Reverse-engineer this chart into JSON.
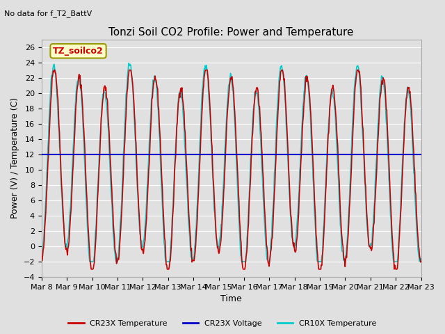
{
  "title": "Tonzi Soil CO2 Profile: Power and Temperature",
  "subtitle": "No data for f_T2_BattV",
  "ylabel": "Power (V) / Temperature (C)",
  "xlabel": "Time",
  "ylim": [
    -4,
    27
  ],
  "yticks": [
    -4,
    -2,
    0,
    2,
    4,
    6,
    8,
    10,
    12,
    14,
    16,
    18,
    20,
    22,
    24,
    26
  ],
  "xtick_labels": [
    "Mar 8",
    "Mar 9",
    "Mar 10",
    "Mar 11",
    "Mar 12",
    "Mar 13",
    "Mar 14",
    "Mar 15",
    "Mar 16",
    "Mar 17",
    "Mar 18",
    "Mar 19",
    "Mar 20",
    "Mar 21",
    "Mar 22",
    "Mar 23"
  ],
  "n_days": 15,
  "voltage_value": 12.0,
  "bg_color": "#e0e0e0",
  "plot_bg_color": "#e0e0e0",
  "cr23x_temp_color": "#cc0000",
  "cr23x_volt_color": "#0000cc",
  "cr10x_temp_color": "#00cccc",
  "legend_label_cr23x_temp": "CR23X Temperature",
  "legend_label_cr23x_volt": "CR23X Voltage",
  "legend_label_cr10x_temp": "CR10X Temperature",
  "legend_box_color": "#ffffcc",
  "legend_box_label": "TZ_soilco2"
}
